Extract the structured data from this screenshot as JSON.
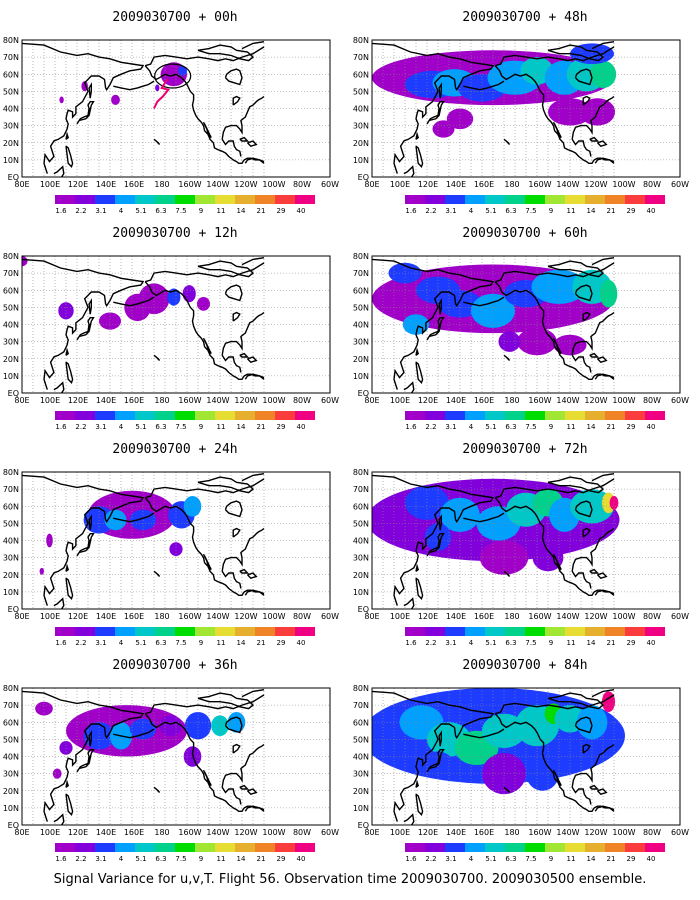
{
  "panels": [
    {
      "title": "2009030700 + 00h"
    },
    {
      "title": "2009030700 + 48h"
    },
    {
      "title": "2009030700 + 12h"
    },
    {
      "title": "2009030700 + 60h"
    },
    {
      "title": "2009030700 + 24h"
    },
    {
      "title": "2009030700 + 72h"
    },
    {
      "title": "2009030700 + 36h"
    },
    {
      "title": "2009030700 + 84h"
    }
  ],
  "lat_labels": [
    "80N",
    "70N",
    "60N",
    "50N",
    "40N",
    "30N",
    "20N",
    "10N",
    "EQ"
  ],
  "lon_labels": [
    "80E",
    "100E",
    "120E",
    "140E",
    "160E",
    "180",
    "160W",
    "140W",
    "120W",
    "100W",
    "80W",
    "60W"
  ],
  "colorbar": {
    "labels": [
      "1.6",
      "2.2",
      "3.1",
      "4",
      "5.1",
      "6.3",
      "7.5",
      "9",
      "11",
      "14",
      "21",
      "29",
      "40"
    ],
    "colors": [
      "#a000c8",
      "#8200dc",
      "#1e3cff",
      "#00a0ff",
      "#00c8c8",
      "#00d28c",
      "#00dc00",
      "#a0e632",
      "#e6dc32",
      "#e6af2d",
      "#f08228",
      "#fa3c3c",
      "#f00082"
    ]
  },
  "caption": "Signal Variance for u,v,T. Flight 56. Observation time 2009030700. 2009030500 ensemble."
}
